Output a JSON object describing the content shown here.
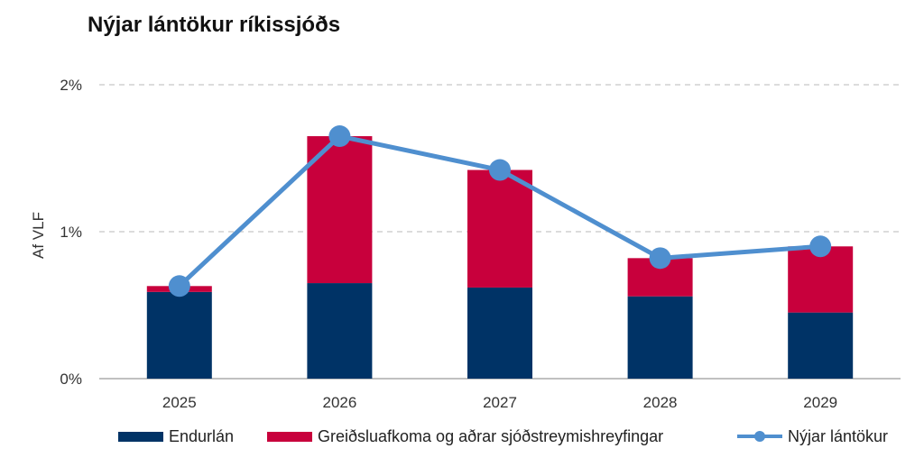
{
  "title": "Nýjar lántökur ríkissjóðs",
  "colors": {
    "endurlan": "#003366",
    "greidsluafkoma": "#c8003c",
    "line": "#4f8fcf",
    "grid": "#c8c8c8",
    "axis": "#9a9a9a"
  },
  "chart_data": {
    "type": "bar",
    "stacked": true,
    "categories": [
      "2025",
      "2026",
      "2027",
      "2028",
      "2029"
    ],
    "series": [
      {
        "name": "Endurlán",
        "kind": "bar",
        "values": [
          0.59,
          0.65,
          0.62,
          0.56,
          0.45
        ]
      },
      {
        "name": "Greiðsluafkoma og aðrar sjóðstreymishreyfingar",
        "kind": "bar",
        "values": [
          0.04,
          1.0,
          0.8,
          0.26,
          0.45
        ]
      },
      {
        "name": "Nýjar lántökur",
        "kind": "line",
        "values": [
          0.63,
          1.65,
          1.42,
          0.82,
          0.9
        ]
      }
    ],
    "ylabel": "Af VLF",
    "xlabel": "",
    "ylim": [
      0,
      2
    ],
    "yticks": [
      {
        "value": 0,
        "label": "0%"
      },
      {
        "value": 1,
        "label": "1%"
      },
      {
        "value": 2,
        "label": "2%"
      }
    ],
    "grid": "horizontal dashed",
    "legend": "bottom"
  }
}
